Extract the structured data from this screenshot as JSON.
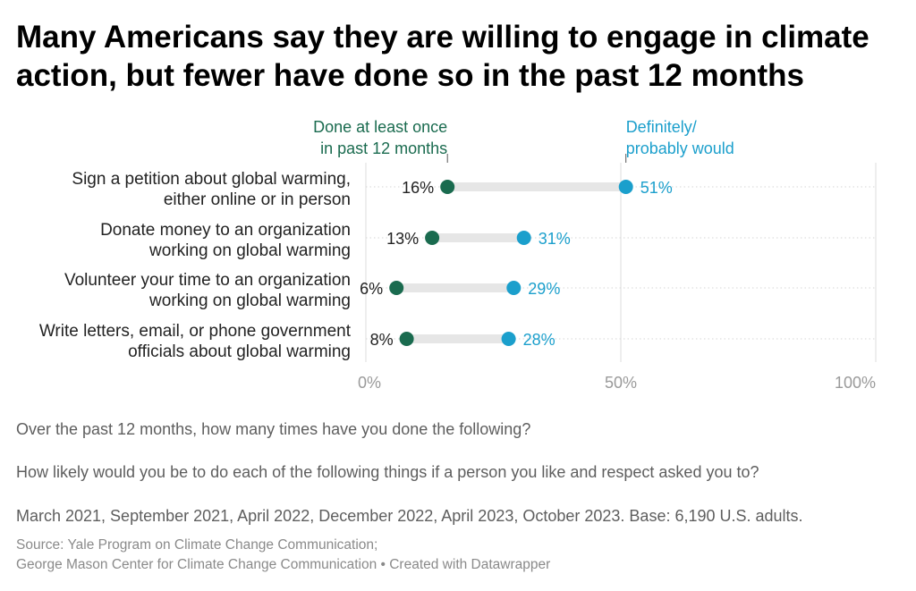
{
  "title": "Many Americans say they are willing to engage in climate action, but fewer have done so in the past 12 months",
  "chart_data": {
    "type": "dot",
    "categories": [
      [
        "Sign a petition about global warming,",
        "either online or in person"
      ],
      [
        "Donate money to an organization",
        "working on global warming"
      ],
      [
        "Volunteer your time to an organization",
        "working on global warming"
      ],
      [
        "Write letters, email, or phone government",
        "officials about global warming"
      ]
    ],
    "series": [
      {
        "name": [
          "Done at least once",
          "in past 12 months"
        ],
        "values": [
          16,
          13,
          6,
          8
        ],
        "color": "#1a6b4f"
      },
      {
        "name": [
          "Definitely/",
          "probably would"
        ],
        "values": [
          51,
          31,
          29,
          28
        ],
        "color": "#1b9fcc"
      }
    ],
    "value_suffix": "%",
    "xlim": [
      0,
      100
    ],
    "xticks": [
      0,
      50,
      100
    ],
    "xtick_labels": [
      "0%",
      "50%",
      "100%"
    ]
  },
  "notes": [
    "Over the past 12 months, how many times have you done the following?",
    "How likely would you be to do each of the following things if a person you like and respect asked you to?",
    "March 2021, September 2021, April 2022, December 2022, April 2023, October 2023. Base: 6,190 U.S. adults."
  ],
  "source": {
    "line1": "Source: Yale Program on Climate Change Communication;",
    "line2": "George Mason Center for Climate Change Communication • Created with Datawrapper"
  }
}
